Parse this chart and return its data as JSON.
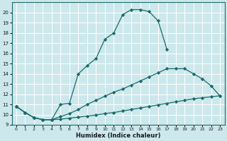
{
  "xlabel": "Humidex (Indice chaleur)",
  "background_color": "#cce8ec",
  "grid_color": "#b0d4d8",
  "line_color": "#1a6b6b",
  "xlim": [
    -0.5,
    23.5
  ],
  "ylim": [
    9,
    21
  ],
  "xticks": [
    0,
    1,
    2,
    3,
    4,
    5,
    6,
    7,
    8,
    9,
    10,
    11,
    12,
    13,
    14,
    15,
    16,
    17,
    18,
    19,
    20,
    21,
    22,
    23
  ],
  "yticks": [
    9,
    10,
    11,
    12,
    13,
    14,
    15,
    16,
    17,
    18,
    19,
    20
  ],
  "s1_x": [
    0,
    1,
    2,
    3,
    4,
    5,
    6,
    7,
    8,
    9,
    10,
    11,
    12,
    13,
    14,
    15,
    16,
    17
  ],
  "s1_y": [
    10.8,
    10.2,
    9.7,
    9.5,
    9.5,
    11.0,
    11.1,
    14.0,
    14.8,
    15.5,
    17.4,
    18.0,
    19.8,
    20.3,
    20.3,
    20.1,
    19.2,
    16.4
  ],
  "s2_x": [
    0,
    1,
    2,
    3,
    4,
    5,
    6,
    7,
    8,
    9,
    10,
    11,
    12,
    13,
    14,
    15,
    16,
    17,
    18,
    19,
    20,
    21,
    22,
    23
  ],
  "s2_y": [
    10.8,
    10.2,
    9.7,
    9.5,
    9.5,
    9.8,
    10.1,
    10.5,
    11.0,
    11.4,
    11.8,
    12.2,
    12.5,
    12.9,
    13.3,
    13.7,
    14.1,
    14.5,
    14.5,
    14.5,
    14.0,
    13.5,
    12.8,
    11.8
  ],
  "s3_x": [
    0,
    1,
    2,
    3,
    4,
    5,
    6,
    7,
    8,
    9,
    10,
    11,
    12,
    13,
    14,
    15,
    16,
    17,
    18,
    19,
    20,
    21,
    22,
    23
  ],
  "s3_y": [
    10.8,
    10.2,
    9.7,
    9.5,
    9.5,
    9.55,
    9.65,
    9.75,
    9.85,
    9.95,
    10.1,
    10.2,
    10.35,
    10.5,
    10.65,
    10.8,
    10.95,
    11.1,
    11.25,
    11.4,
    11.55,
    11.65,
    11.75,
    11.85
  ]
}
